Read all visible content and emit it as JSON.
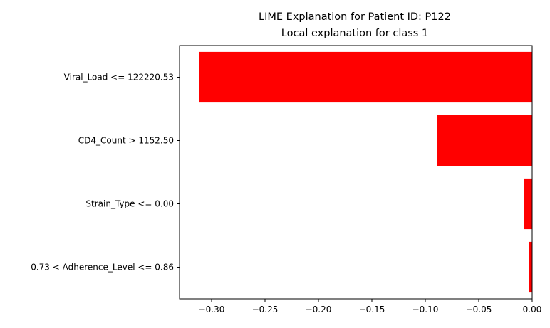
{
  "chart_data": {
    "type": "bar",
    "orientation": "horizontal",
    "suptitle": "LIME Explanation for Patient ID: P122",
    "title": "Local explanation for class 1",
    "xlabel": "",
    "ylabel": "",
    "xlim": [
      -0.33,
      0.0
    ],
    "xticks": [
      -0.3,
      -0.25,
      -0.2,
      -0.15,
      -0.1,
      -0.05,
      0.0
    ],
    "xtick_labels": [
      "−0.30",
      "−0.25",
      "−0.20",
      "−0.15",
      "−0.10",
      "−0.05",
      "0.00"
    ],
    "categories": [
      "Viral_Load <= 122220.53",
      "CD4_Count > 1152.50",
      "Strain_Type <= 0.00",
      "0.73 < Adherence_Level <= 0.86"
    ],
    "values": [
      -0.312,
      -0.089,
      -0.008,
      -0.003
    ],
    "bar_color": "#ff0000",
    "grid": false,
    "legend": "none"
  }
}
